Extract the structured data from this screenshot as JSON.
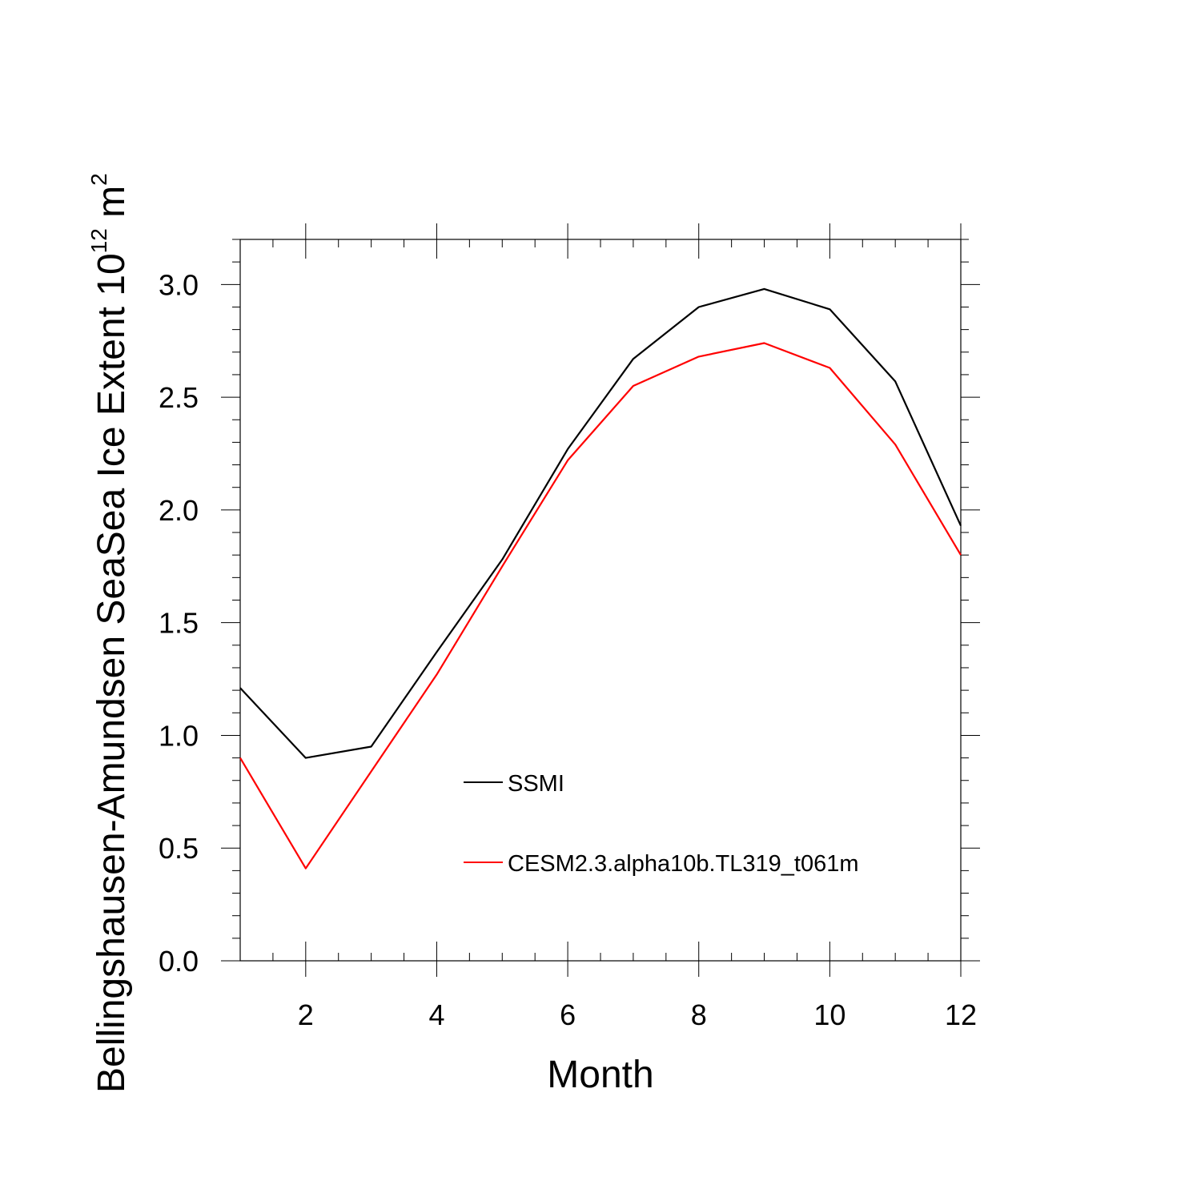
{
  "chart_data": {
    "type": "line",
    "xlabel": "Month",
    "ylabel": {
      "main": "Bellingshausen-Amundsen SeaSea Ice Extent 10",
      "exponent": "12",
      "unit": " m",
      "unit_exponent": "2"
    },
    "x": [
      1,
      2,
      3,
      4,
      5,
      6,
      7,
      8,
      9,
      10,
      11,
      12
    ],
    "xlim": [
      1,
      12
    ],
    "ylim": [
      0,
      3.2
    ],
    "xticks": [
      2,
      4,
      6,
      8,
      10,
      12
    ],
    "xtick_labels": [
      "2",
      "4",
      "6",
      "8",
      "10",
      "12"
    ],
    "yticks": [
      0,
      0.5,
      1.0,
      1.5,
      2.0,
      2.5,
      3.0
    ],
    "ytick_labels": [
      "0.0",
      "0.5",
      "1.0",
      "1.5",
      "2.0",
      "2.5",
      "3.0"
    ],
    "legend_position": "center",
    "grid": false,
    "series": [
      {
        "name": "SSMI",
        "color": "#000000",
        "values": [
          1.21,
          0.9,
          0.95,
          1.37,
          1.78,
          2.27,
          2.67,
          2.9,
          2.98,
          2.89,
          2.57,
          1.93
        ]
      },
      {
        "name": "CESM2.3.alpha10b.TL319_t061m",
        "color": "#ff0000",
        "values": [
          0.9,
          0.41,
          0.84,
          1.27,
          1.75,
          2.22,
          2.55,
          2.68,
          2.74,
          2.63,
          2.29,
          1.8
        ]
      }
    ]
  }
}
